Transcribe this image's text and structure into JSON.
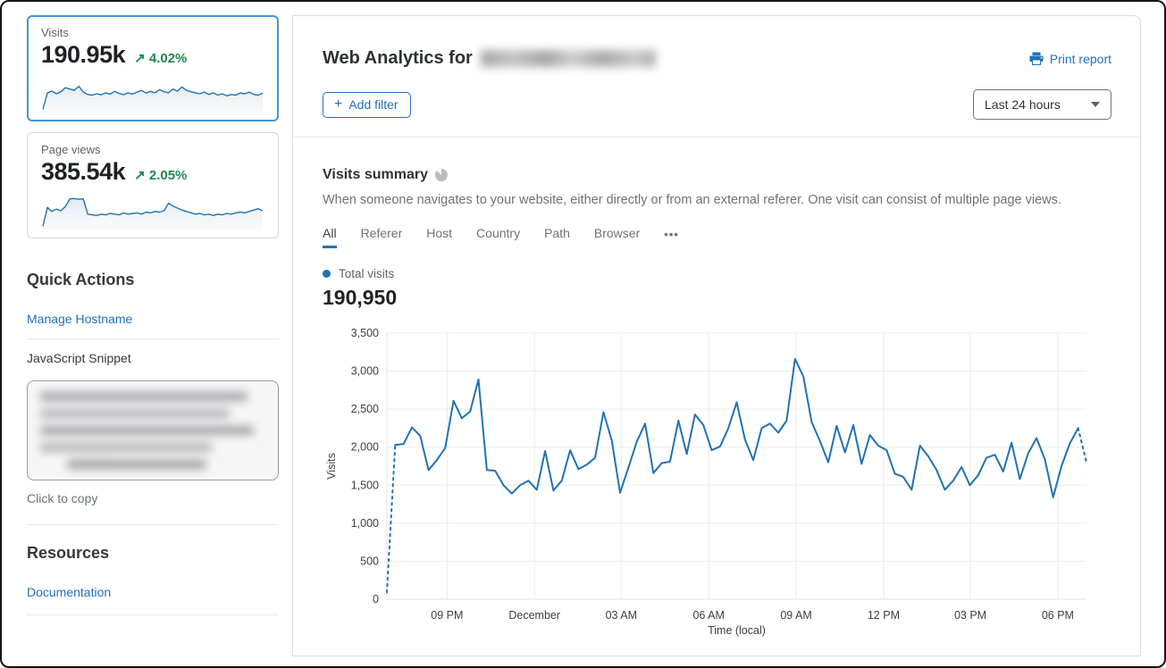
{
  "colors": {
    "accent_blue": "#2270b8",
    "chart_line": "#2272b3",
    "positive_green": "#1e8a4e",
    "selected_card_border": "#4596d1",
    "grid": "#ececec"
  },
  "sidebar": {
    "visits_card": {
      "label": "Visits",
      "value": "190.95k",
      "delta_arrow": "↗",
      "delta": "4.02%",
      "sparkline": [
        4,
        52,
        58,
        50,
        56,
        68,
        64,
        60,
        72,
        55,
        48,
        46,
        50,
        47,
        53,
        49,
        57,
        51,
        47,
        53,
        49,
        55,
        60,
        52,
        57,
        53,
        62,
        56,
        53,
        64,
        58,
        70,
        60,
        56,
        53,
        50,
        55,
        48,
        53,
        46,
        50,
        44,
        48,
        46,
        52,
        50,
        55,
        48,
        46,
        52
      ]
    },
    "pageviews_card": {
      "label": "Page views",
      "value": "385.54k",
      "delta_arrow": "↗",
      "delta": "2.05%",
      "sparkline": [
        4,
        60,
        48,
        55,
        50,
        62,
        85,
        86,
        84,
        85,
        40,
        38,
        36,
        40,
        38,
        42,
        40,
        38,
        44,
        40,
        42,
        44,
        40,
        46,
        44,
        48,
        46,
        50,
        72,
        64,
        58,
        52,
        48,
        44,
        40,
        42,
        38,
        40,
        36,
        40,
        38,
        42,
        40,
        44,
        46,
        44,
        48,
        52,
        56,
        50
      ]
    },
    "quick_actions": {
      "title": "Quick Actions",
      "manage_hostname": "Manage Hostname",
      "snippet_label": "JavaScript Snippet",
      "click_to_copy": "Click to copy"
    },
    "resources": {
      "title": "Resources",
      "documentation": "Documentation"
    }
  },
  "header": {
    "title_prefix": "Web Analytics for",
    "print_report": "Print report",
    "add_filter_plus": "+",
    "add_filter_label": "Add filter",
    "time_range": "Last 24 hours"
  },
  "summary": {
    "title": "Visits summary",
    "description": "When someone navigates to your website, either directly or from an external referer. One visit can consist of multiple page views.",
    "tabs": [
      "All",
      "Referer",
      "Host",
      "Country",
      "Path",
      "Browser"
    ],
    "active_tab": "All",
    "more_tabs": "•••",
    "legend_label": "Total visits",
    "total_value": "190,950"
  },
  "chart_data": {
    "type": "line",
    "title": "Total visits",
    "xlabel": "Time (local)",
    "ylabel": "Visits",
    "ylim": [
      0,
      3500
    ],
    "y_tick_step": 500,
    "y_tick_labels": [
      "0",
      "500",
      "1,000",
      "1,500",
      "2,000",
      "2,500",
      "3,000",
      "3,500"
    ],
    "x_ticks": [
      {
        "label": "09 PM",
        "pos": 0.086
      },
      {
        "label": "December",
        "pos": 0.211
      },
      {
        "label": "03 AM",
        "pos": 0.335
      },
      {
        "label": "06 AM",
        "pos": 0.46
      },
      {
        "label": "09 AM",
        "pos": 0.585
      },
      {
        "label": "12 PM",
        "pos": 0.71
      },
      {
        "label": "03 PM",
        "pos": 0.834
      },
      {
        "label": "06 PM",
        "pos": 0.959
      }
    ],
    "grid": true,
    "legend_position": "top-left",
    "dashed_prefix_points": 1,
    "dashed_suffix_points": 1,
    "series": [
      {
        "name": "Total visits",
        "color": "#2272b3",
        "values": [
          90,
          2030,
          2040,
          2260,
          2150,
          1700,
          1830,
          1990,
          2610,
          2380,
          2470,
          2890,
          1700,
          1690,
          1500,
          1390,
          1500,
          1560,
          1440,
          1950,
          1430,
          1560,
          1960,
          1710,
          1770,
          1860,
          2460,
          2090,
          1400,
          1730,
          2070,
          2310,
          1660,
          1790,
          1810,
          2350,
          1910,
          2430,
          2290,
          1960,
          2010,
          2250,
          2590,
          2100,
          1830,
          2250,
          2310,
          2190,
          2350,
          3160,
          2930,
          2330,
          2080,
          1800,
          2280,
          1930,
          2290,
          1780,
          2160,
          2020,
          1960,
          1650,
          1610,
          1440,
          2020,
          1880,
          1700,
          1440,
          1560,
          1740,
          1500,
          1630,
          1860,
          1900,
          1680,
          2060,
          1580,
          1920,
          2120,
          1840,
          1340,
          1750,
          2050,
          2250,
          1800
        ]
      }
    ]
  }
}
